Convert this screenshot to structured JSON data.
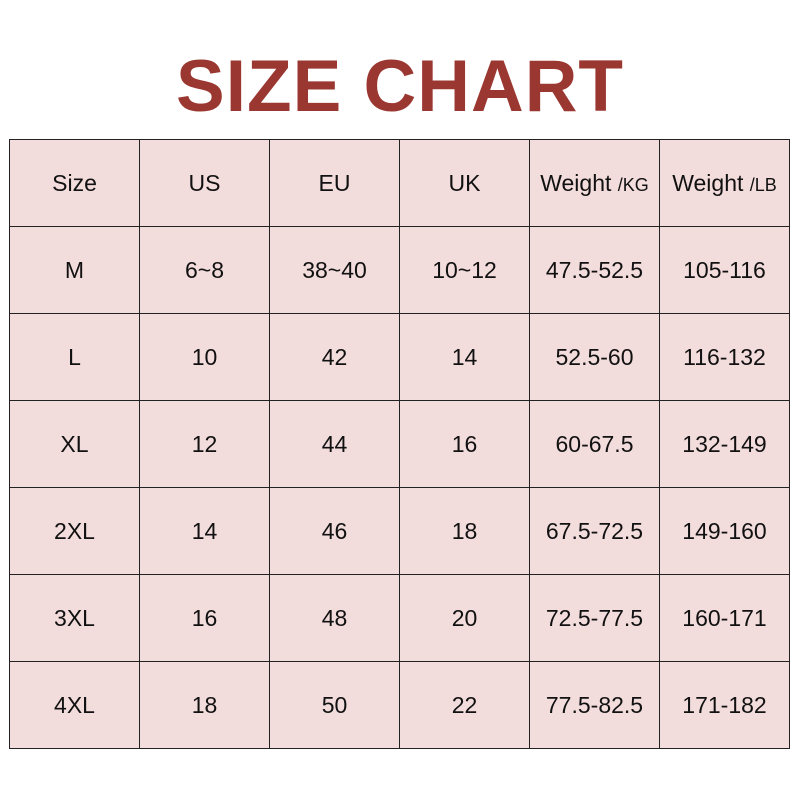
{
  "title": "SIZE CHART",
  "colors": {
    "title": "#9b3731",
    "cell_background": "#f3dcdc"
  },
  "headers": [
    {
      "label": "Size",
      "unit": ""
    },
    {
      "label": "US",
      "unit": ""
    },
    {
      "label": "EU",
      "unit": ""
    },
    {
      "label": "UK",
      "unit": ""
    },
    {
      "label": "Weight ",
      "unit": "/KG"
    },
    {
      "label": "Weight ",
      "unit": "/LB"
    }
  ],
  "rows": [
    [
      "M",
      "6~8",
      "38~40",
      "10~12",
      "47.5-52.5",
      "105-116"
    ],
    [
      "L",
      "10",
      "42",
      "14",
      "52.5-60",
      "116-132"
    ],
    [
      "XL",
      "12",
      "44",
      "16",
      "60-67.5",
      "132-149"
    ],
    [
      "2XL",
      "14",
      "46",
      "18",
      "67.5-72.5",
      "149-160"
    ],
    [
      "3XL",
      "16",
      "48",
      "20",
      "72.5-77.5",
      "160-171"
    ],
    [
      "4XL",
      "18",
      "50",
      "22",
      "77.5-82.5",
      "171-182"
    ]
  ]
}
